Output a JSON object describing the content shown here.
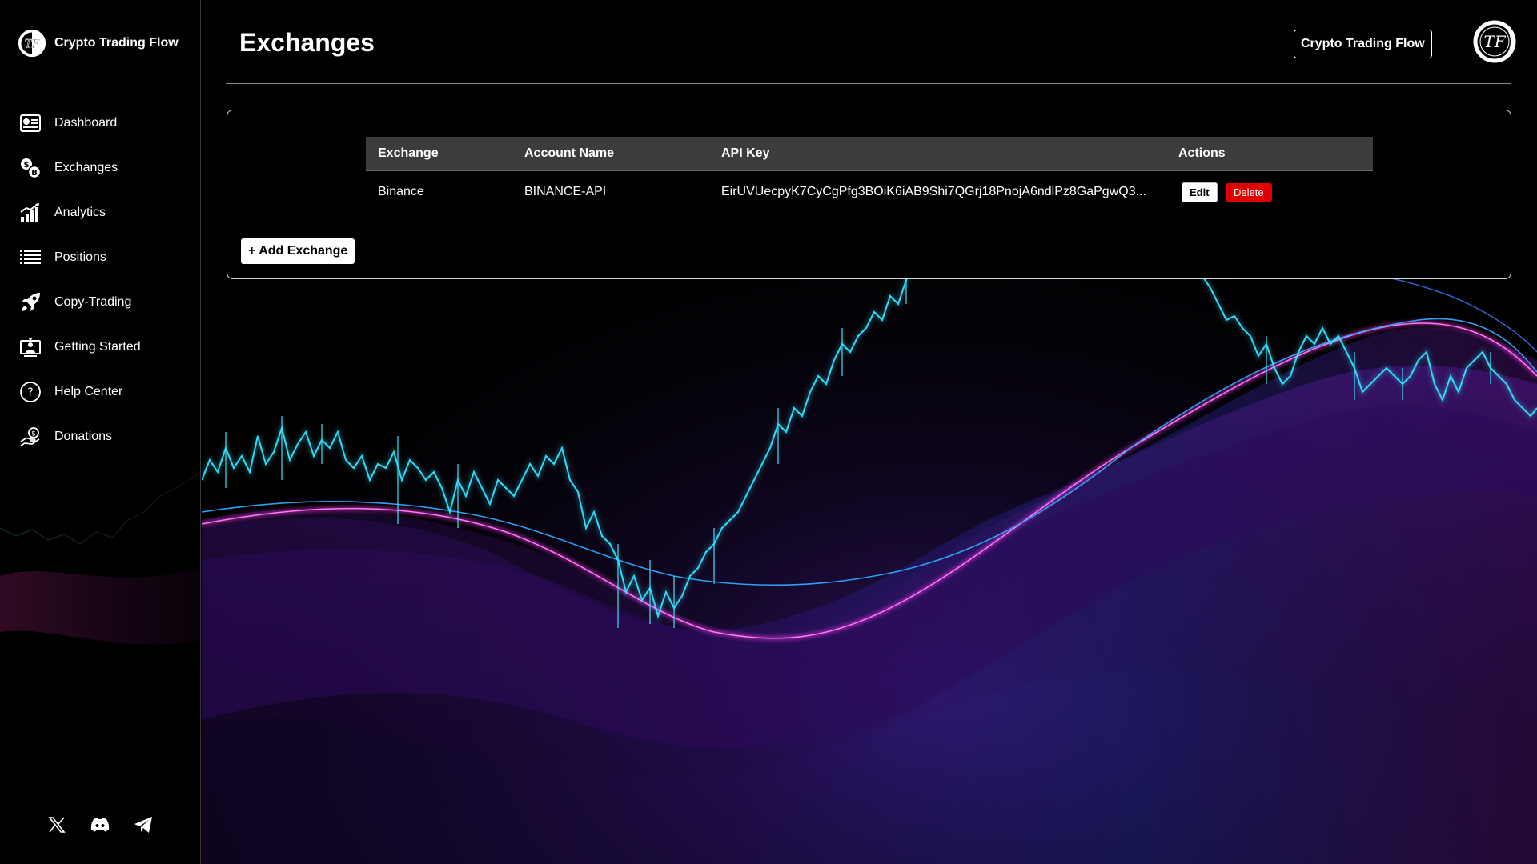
{
  "app": {
    "brand_name": "Crypto Trading Flow",
    "logo_initials": "TF"
  },
  "sidebar": {
    "items": [
      {
        "label": "Dashboard",
        "icon": "dashboard-icon"
      },
      {
        "label": "Exchanges",
        "icon": "exchange-coins-icon"
      },
      {
        "label": "Analytics",
        "icon": "analytics-bars-icon"
      },
      {
        "label": "Positions",
        "icon": "list-icon"
      },
      {
        "label": "Copy-Trading",
        "icon": "rocket-icon"
      },
      {
        "label": "Getting Started",
        "icon": "monitor-person-icon"
      },
      {
        "label": "Help Center",
        "icon": "question-circle-icon"
      },
      {
        "label": "Donations",
        "icon": "hand-coin-icon"
      }
    ],
    "socials": [
      "x-icon",
      "discord-icon",
      "telegram-icon"
    ]
  },
  "header": {
    "title": "Exchanges",
    "brand_button": "Crypto Trading Flow"
  },
  "exchanges_table": {
    "columns": [
      "Exchange",
      "Account Name",
      "API Key",
      "Actions"
    ],
    "rows": [
      {
        "exchange": "Binance",
        "account_name": "BINANCE-API",
        "api_key": "EirUVUecpyK7CyCgPfg3BOiK6iAB9Shi7QGrj18PnojA6ndlPz8GaPgwQ3...",
        "edit_label": "Edit",
        "delete_label": "Delete"
      }
    ],
    "add_button": "+ Add Exchange"
  },
  "colors": {
    "background": "#000000",
    "delete": "#e00000",
    "chart_cyan": "#38e8ff",
    "wave_purple": "#a020f0",
    "wave_blue": "#2f4bff"
  }
}
